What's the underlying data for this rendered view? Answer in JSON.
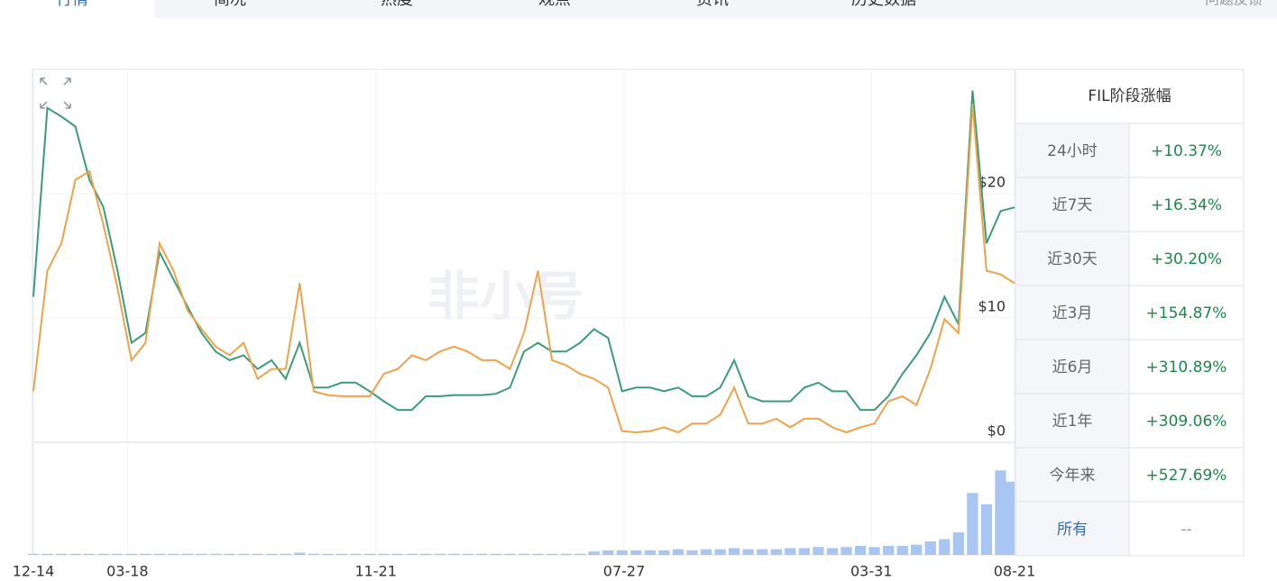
{
  "tabs": [
    "行情",
    "简况",
    "热度",
    "观点",
    "资讯",
    "历史数据"
  ],
  "feedback": "问题反馈",
  "watermark": "非小号",
  "chart_data": {
    "type": "line",
    "x": [
      0,
      14,
      28,
      42,
      56,
      70,
      84,
      98,
      112,
      126,
      140,
      154,
      168,
      182,
      196,
      210,
      224,
      238,
      252,
      266,
      280,
      294,
      308,
      322,
      336,
      350,
      364,
      378,
      392,
      406,
      420,
      434,
      448,
      462,
      476,
      490,
      504,
      518,
      532,
      546,
      560,
      574,
      588,
      602,
      616,
      630,
      644,
      658,
      672,
      686,
      700,
      714,
      728,
      742,
      756,
      770,
      784,
      798,
      812,
      826,
      840,
      854,
      868,
      882,
      896,
      910,
      924,
      938,
      952,
      966,
      980
    ],
    "xlim": [
      0,
      980
    ],
    "xticks": [
      {
        "value": 0,
        "label": "12-14"
      },
      {
        "value": 94,
        "label": "03-18"
      },
      {
        "value": 342,
        "label": "11-21"
      },
      {
        "value": 590,
        "label": "07-27"
      },
      {
        "value": 837,
        "label": "03-31"
      },
      {
        "value": 980,
        "label": "08-21"
      }
    ],
    "ylim": [
      0,
      30
    ],
    "yticks": [
      {
        "value": 0,
        "label": "$0"
      },
      {
        "value": 10,
        "label": "$10"
      },
      {
        "value": 20,
        "label": "$20"
      }
    ],
    "y2lim": [
      0,
      100
    ],
    "grid": true,
    "series": [
      {
        "color": "#3a9d78",
        "values": [
          11.7,
          26.9,
          26.2,
          25.4,
          21.1,
          18.9,
          13.8,
          8.0,
          8.8,
          15.3,
          13.1,
          10.9,
          8.8,
          7.3,
          6.6,
          7.0,
          5.9,
          6.6,
          5.1,
          8.0,
          4.4,
          4.4,
          4.8,
          4.8,
          4.1,
          3.3,
          2.6,
          2.6,
          3.7,
          3.7,
          3.8,
          3.8,
          3.8,
          3.9,
          4.4,
          7.3,
          8.0,
          7.3,
          7.3,
          8.0,
          9.1,
          8.4,
          4.1,
          4.4,
          4.4,
          4.1,
          4.4,
          3.7,
          3.7,
          4.4,
          6.6,
          3.7,
          3.3,
          3.3,
          3.3,
          4.4,
          4.8,
          4.1,
          4.1,
          2.6,
          2.6,
          3.7,
          5.5,
          7.0,
          8.8,
          11.7,
          9.5,
          28.3,
          16.0,
          18.6,
          18.9
        ]
      },
      {
        "color": "#f0a24a",
        "values": [
          4.1,
          13.8,
          16.0,
          21.1,
          21.8,
          17.5,
          12.4,
          6.6,
          8.0,
          16.0,
          13.8,
          10.6,
          9.1,
          7.7,
          7.0,
          8.0,
          5.1,
          5.9,
          5.9,
          12.8,
          4.1,
          3.8,
          3.7,
          3.7,
          3.7,
          5.5,
          5.9,
          7.0,
          6.6,
          7.3,
          7.7,
          7.3,
          6.6,
          6.6,
          5.9,
          8.8,
          13.8,
          6.6,
          6.2,
          5.5,
          5.1,
          4.4,
          0.9,
          0.8,
          0.9,
          1.2,
          0.8,
          1.5,
          1.5,
          2.2,
          4.4,
          1.5,
          1.5,
          1.9,
          1.2,
          1.9,
          1.9,
          1.2,
          0.8,
          1.2,
          1.5,
          3.3,
          3.7,
          3.0,
          5.9,
          9.9,
          8.8,
          27.2,
          13.8,
          13.5,
          12.8
        ]
      },
      {
        "color": "#a9c6f2",
        "axis": "y2",
        "type": "bar",
        "values": [
          1,
          1,
          1,
          1,
          1,
          1,
          1,
          1,
          1,
          1,
          1,
          1,
          1,
          1,
          1,
          1,
          1,
          1,
          1,
          2,
          1,
          1,
          1,
          1,
          1,
          1,
          1,
          1,
          1,
          1,
          1,
          1,
          1,
          1,
          1,
          1,
          1,
          1,
          1,
          1,
          3,
          4,
          4,
          4,
          4,
          4,
          5,
          4,
          5,
          5,
          6,
          5,
          5,
          5,
          6,
          6,
          7,
          6,
          7,
          8,
          7,
          8,
          8,
          9,
          12,
          14,
          20,
          55,
          45,
          75,
          65
        ]
      }
    ]
  },
  "table": {
    "title": "FIL阶段涨幅",
    "rows": [
      [
        "24小时",
        "+10.37%"
      ],
      [
        "近7天",
        "+16.34%"
      ],
      [
        "近30天",
        "+30.20%"
      ],
      [
        "近3月",
        "+154.87%"
      ],
      [
        "近6月",
        "+310.89%"
      ],
      [
        "近1年",
        "+309.06%"
      ],
      [
        "今年来",
        "+527.69%"
      ],
      [
        "所有",
        "--"
      ]
    ]
  }
}
